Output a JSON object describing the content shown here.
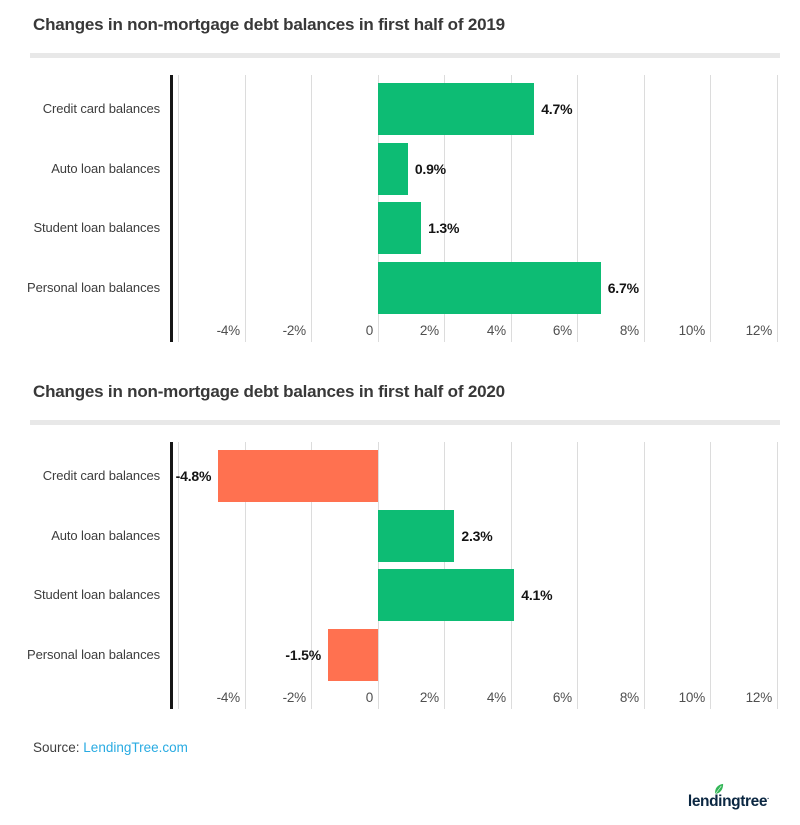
{
  "chart_data": [
    {
      "type": "bar",
      "orientation": "horizontal",
      "title": "Changes in non-mortgage debt balances in first half of 2019",
      "categories": [
        "Credit card balances",
        "Auto loan balances",
        "Student loan balances",
        "Personal loan balances"
      ],
      "values": [
        4.7,
        0.9,
        1.3,
        6.7
      ],
      "value_labels": [
        "4.7%",
        "0.9%",
        "1.3%",
        "6.7%"
      ],
      "bar_colors": [
        "#0dbc74",
        "#0dbc74",
        "#0dbc74",
        "#0dbc74"
      ],
      "xlim": [
        -6.25,
        12.15
      ],
      "gridline_values": [
        -6,
        -4,
        -2,
        0,
        2,
        4,
        6,
        8,
        10,
        12
      ],
      "tick_values": [
        -4,
        -2,
        0,
        2,
        4,
        6,
        8,
        10,
        12
      ],
      "tick_labels": [
        "-4%",
        "-2%",
        "0",
        "2%",
        "4%",
        "6%",
        "8%",
        "10%",
        "12%"
      ],
      "grid": true,
      "legend": false,
      "xlabel": "",
      "ylabel": ""
    },
    {
      "type": "bar",
      "orientation": "horizontal",
      "title": "Changes in non-mortgage debt balances in first half of 2020",
      "categories": [
        "Credit card balances",
        "Auto loan balances",
        "Student loan balances",
        "Personal loan balances"
      ],
      "values": [
        -4.8,
        2.3,
        4.1,
        -1.5
      ],
      "value_labels": [
        "-4.8%",
        "2.3%",
        "4.1%",
        "-1.5%"
      ],
      "bar_colors": [
        "#ff7150",
        "#0dbc74",
        "#0dbc74",
        "#ff7150"
      ],
      "xlim": [
        -6.25,
        12.15
      ],
      "gridline_values": [
        -6,
        -4,
        -2,
        0,
        2,
        4,
        6,
        8,
        10,
        12
      ],
      "tick_values": [
        -4,
        -2,
        0,
        2,
        4,
        6,
        8,
        10,
        12
      ],
      "tick_labels": [
        "-4%",
        "-2%",
        "0",
        "2%",
        "4%",
        "6%",
        "8%",
        "10%",
        "12%"
      ],
      "grid": true,
      "legend": false,
      "xlabel": "",
      "ylabel": ""
    }
  ],
  "footer": {
    "source_label": "Source:",
    "source_link_text": "LendingTree.com"
  },
  "logo": {
    "text": "lendingtree",
    "mark": "·",
    "leaf_icon": "leaf-icon"
  },
  "colors": {
    "positive_bar": "#0dbc74",
    "negative_bar": "#ff7150",
    "gridline": "#dcdcdc",
    "axis_line": "#161616",
    "divider": "#e8e8e8",
    "title_text": "#383838",
    "link": "#29abe2",
    "logo_navy": "#0b2742",
    "logo_leaf_green": "#33b657"
  }
}
